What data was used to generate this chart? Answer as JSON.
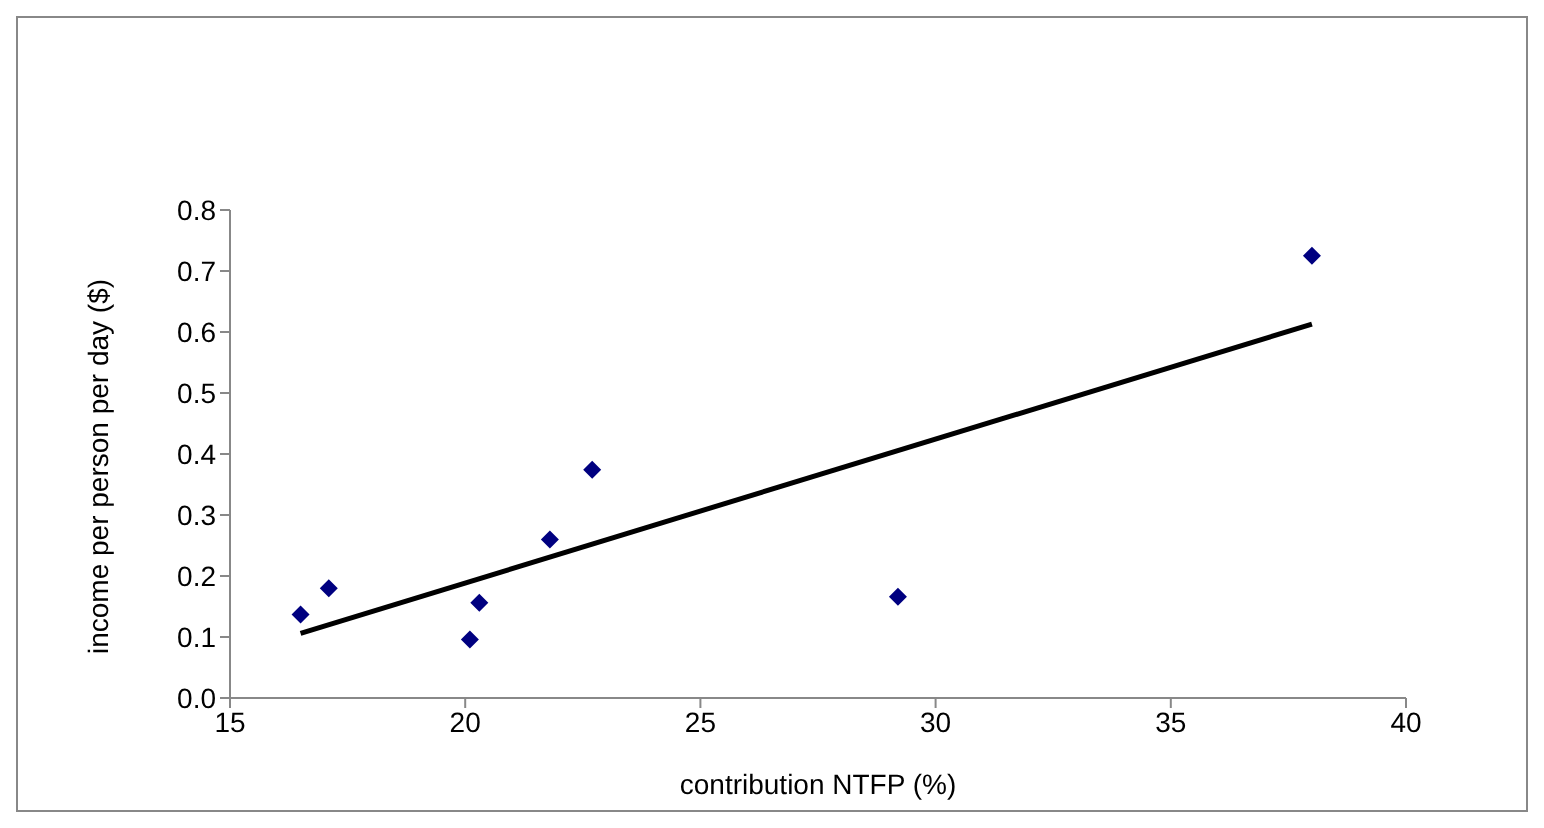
{
  "chart_data": {
    "type": "scatter",
    "xlabel": "contribution NTFP (%)",
    "ylabel": "income per person per day ($)",
    "xlim": [
      15,
      40
    ],
    "xticks": [
      15,
      20,
      25,
      30,
      35,
      40
    ],
    "ylim": [
      0,
      0.8
    ],
    "yticks": [
      {
        "value": 0,
        "label": "0.0"
      },
      0.1,
      0.2,
      0.3,
      0.4,
      0.5,
      0.6,
      0.7,
      0.8
    ],
    "grid": false,
    "marker": "diamond",
    "series": [
      {
        "type": "scatter",
        "color": "#000080",
        "x": [
          16.5,
          17.1,
          20.1,
          20.3,
          21.8,
          22.7,
          29.2,
          38.0
        ],
        "values": [
          0.137,
          0.18,
          0.096,
          0.156,
          0.26,
          0.374,
          0.166,
          0.725
        ]
      },
      {
        "type": "line",
        "color": "#000000",
        "marker": "none",
        "x": [
          16.5,
          38.0
        ],
        "values": [
          0.106,
          0.613
        ]
      }
    ]
  }
}
